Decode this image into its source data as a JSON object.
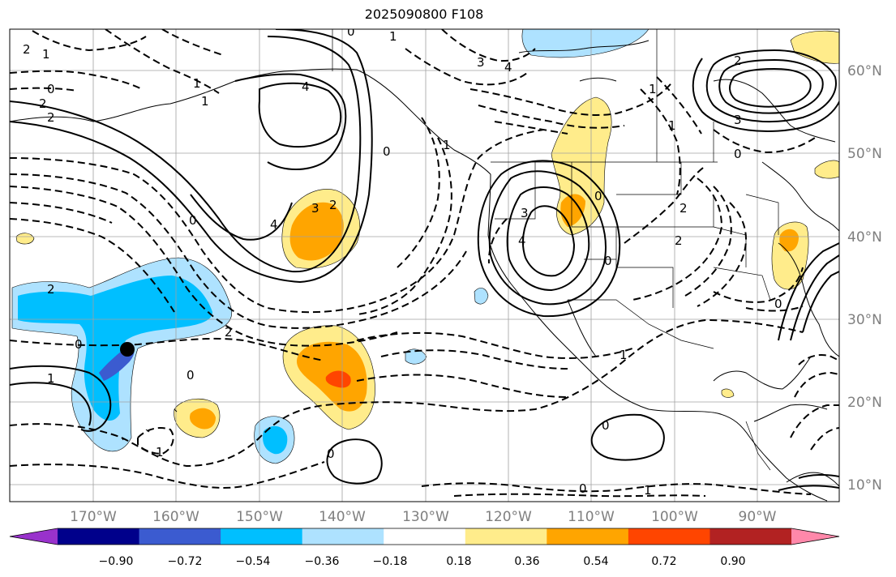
{
  "title": "2025090800 F108",
  "axes": {
    "lon_labels": [
      "170°W",
      "160°W",
      "150°W",
      "140°W",
      "130°W",
      "120°W",
      "110°W",
      "100°W",
      "90°W"
    ],
    "lat_labels": [
      "60°N",
      "50°N",
      "40°N",
      "30°N",
      "20°N",
      "10°N"
    ],
    "lon_range": [
      -180,
      -80
    ],
    "lat_range": [
      8,
      65
    ],
    "grid": true
  },
  "colorbar": {
    "ticks": [
      "−0.90",
      "−0.72",
      "−0.54",
      "−0.36",
      "−0.18",
      "0.18",
      "0.36",
      "0.54",
      "0.72",
      "0.90"
    ],
    "colors": [
      "#9932cc",
      "#00008b",
      "#3b5bd0",
      "#00bfff",
      "#aee2ff",
      "#ffffff",
      "#ffec8b",
      "#ffa500",
      "#ff4500",
      "#b22222",
      "#ff88aa"
    ],
    "extend": "both"
  },
  "contour_labels": [
    {
      "text": "2"
    },
    {
      "text": "1"
    },
    {
      "text": "0"
    },
    {
      "text": "2"
    },
    {
      "text": "2"
    },
    {
      "text": "4"
    },
    {
      "text": "1"
    },
    {
      "text": "1"
    },
    {
      "text": "3"
    },
    {
      "text": "2"
    },
    {
      "text": "4"
    },
    {
      "text": "0"
    },
    {
      "text": "2"
    },
    {
      "text": "0"
    },
    {
      "text": "1"
    },
    {
      "text": "1"
    },
    {
      "text": "1"
    },
    {
      "text": "0"
    },
    {
      "text": "3"
    },
    {
      "text": "4"
    },
    {
      "text": "0"
    },
    {
      "text": "0"
    },
    {
      "text": "2"
    },
    {
      "text": "3"
    },
    {
      "text": "0"
    },
    {
      "text": "2"
    },
    {
      "text": "2"
    },
    {
      "text": "0"
    },
    {
      "text": "2"
    },
    {
      "text": "0"
    },
    {
      "text": "1"
    },
    {
      "text": "0"
    },
    {
      "text": "0"
    },
    {
      "text": "1"
    },
    {
      "text": "0"
    },
    {
      "text": "1"
    },
    {
      "text": "1"
    },
    {
      "text": "4"
    },
    {
      "text": "0"
    },
    {
      "text": "3"
    },
    {
      "text": "1"
    }
  ],
  "marker": {
    "lon": -166,
    "lat": 26,
    "color": "#000000"
  }
}
